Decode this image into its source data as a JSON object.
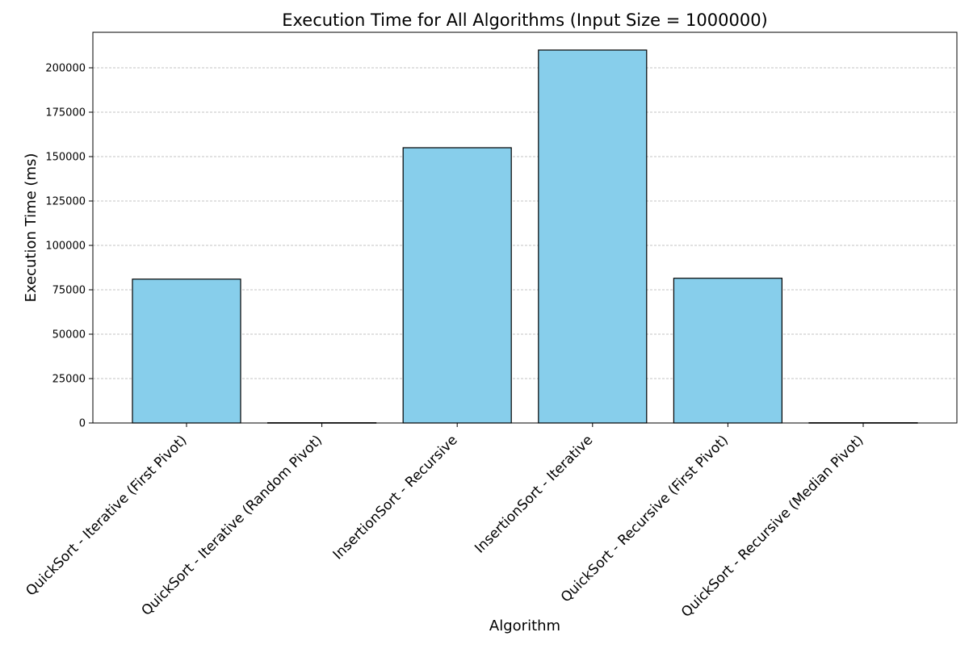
{
  "chart_data": {
    "type": "bar",
    "title": "Execution Time for All Algorithms (Input Size = 1000000)",
    "xlabel": "Algorithm",
    "ylabel": "Execution Time (ms)",
    "categories": [
      "QuickSort - Iterative (First Pivot)",
      "QuickSort - Iterative (Random Pivot)",
      "InsertionSort - Recursive",
      "InsertionSort - Iterative",
      "QuickSort - Recursive (First Pivot)",
      "QuickSort - Recursive (Median Pivot)"
    ],
    "values": [
      81000,
      150,
      155000,
      210000,
      81500,
      150
    ],
    "ylim": [
      0,
      220000
    ],
    "yticks": [
      0,
      25000,
      50000,
      75000,
      100000,
      125000,
      150000,
      175000,
      200000
    ],
    "ytick_labels": [
      "0",
      "25000",
      "50000",
      "75000",
      "100000",
      "125000",
      "150000",
      "175000",
      "200000"
    ],
    "grid": "horizontal dashed",
    "bar_color": "#87ceeb",
    "edge_color": "#000000",
    "grid_color": "#b0b0b0"
  }
}
